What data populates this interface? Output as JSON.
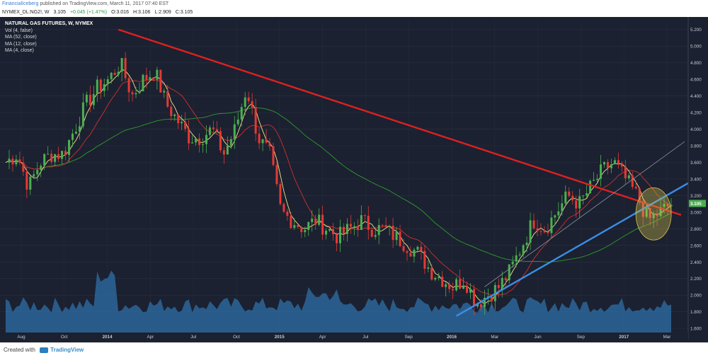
{
  "header": {
    "author": "FinancialIceberg",
    "published": "published on TradingView.com, March 11, 2017 07:40 EST"
  },
  "quote": {
    "symbol": "NYMEX_DL:NG2!, W",
    "last": "3.105",
    "change": "+0.045 (+1.47%)",
    "open": "O:3.016",
    "high": "H:3.106",
    "low": "L:2.909",
    "close": "C:3.105"
  },
  "legend": {
    "title": "NATURAL GAS FUTURES, W, NYMEX",
    "items": [
      "Vol (4, false)",
      "MA (52, close)",
      "MA (12, close)",
      "MA (4, close)"
    ]
  },
  "footer": {
    "created_with": "Created with",
    "brand": "TradingView"
  },
  "colors": {
    "up": "#4caf50",
    "down": "#e53935",
    "ma52": "#2e9c2e",
    "ma12": "#d32f2f",
    "ma4": "#f0e68c",
    "resistance": "#e02020",
    "support": "#3a8ee6",
    "volume": "#2f6fa8",
    "highlight": "#d7c64a"
  },
  "chart_data": {
    "type": "candlestick",
    "title": "NATURAL GAS FUTURES, W, NYMEX",
    "x_tick_labels": [
      "Aug",
      "Oct",
      "2014",
      "Apr",
      "Jul",
      "Oct",
      "2015",
      "Apr",
      "Jul",
      "Sep",
      "2016",
      "Mar",
      "Jun",
      "Sep",
      "2017",
      "Mar"
    ],
    "y_tick_labels": [
      "5.200",
      "5.000",
      "4.800",
      "4.600",
      "4.400",
      "4.200",
      "4.000",
      "3.800",
      "3.600",
      "3.400",
      "3.200",
      "3.000",
      "2.800",
      "2.600",
      "2.400",
      "2.200",
      "2.000",
      "1.800",
      "1.600"
    ],
    "ylim": [
      1.55,
      5.3
    ],
    "last_price_label": "3.105",
    "approx_weekly_close_path": [
      3.6,
      3.7,
      3.3,
      3.6,
      3.7,
      3.7,
      4.0,
      4.3,
      4.5,
      4.6,
      4.8,
      4.4,
      4.6,
      4.7,
      4.3,
      4.1,
      3.9,
      3.9,
      4.0,
      3.7,
      4.0,
      4.5,
      3.9,
      3.7,
      3.0,
      2.9,
      2.8,
      2.9,
      2.8,
      2.7,
      2.8,
      2.9,
      2.8,
      2.8,
      2.7,
      2.6,
      2.5,
      2.3,
      2.2,
      2.1,
      2.2,
      1.9,
      2.0,
      2.1,
      2.3,
      2.6,
      2.9,
      2.8,
      3.0,
      3.2,
      3.1,
      3.3,
      3.5,
      3.6,
      3.4,
      3.2,
      2.9,
      3.0,
      3.1
    ],
    "trendlines": [
      {
        "type": "resistance",
        "from_price": 5.2,
        "to_price": 3.0,
        "period": "2014 - Mar 2017"
      },
      {
        "type": "support",
        "from_price": 1.75,
        "to_price": 3.35,
        "period": "Mar 2016 - Mar 2017"
      }
    ]
  }
}
